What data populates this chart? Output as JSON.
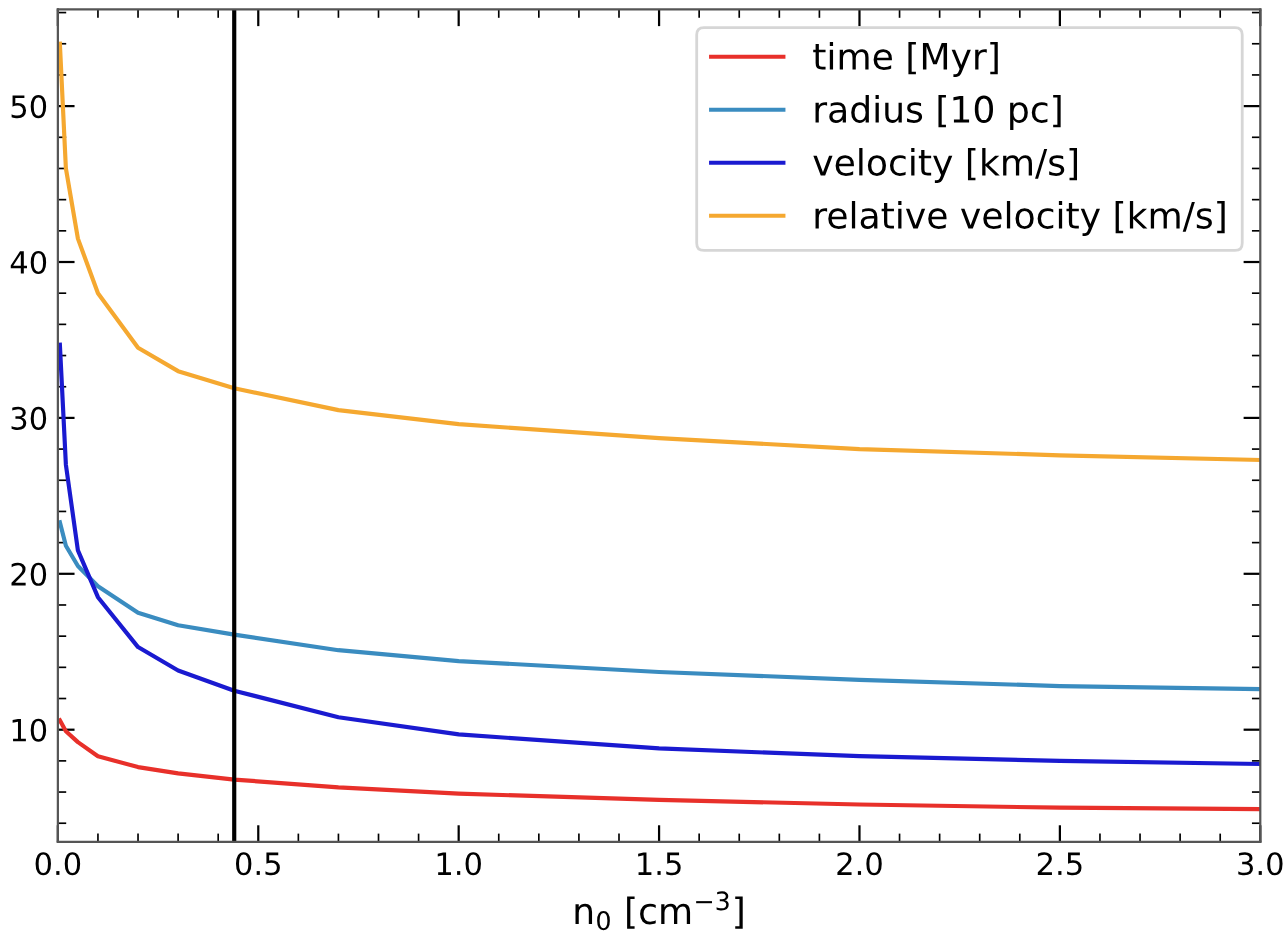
{
  "chart_data": {
    "type": "line",
    "xlabel": "n$_{0}$ [cm$^{−3}$]",
    "xlim": [
      0,
      3.0
    ],
    "ylim": [
      2.8,
      56.2
    ],
    "xticks": [
      {
        "value": 0,
        "label": "0.0"
      },
      0.5,
      {
        "value": 1,
        "label": "1.0"
      },
      1.5,
      {
        "value": 2,
        "label": "2.0"
      },
      2.5,
      {
        "value": 3,
        "label": "3.0"
      }
    ],
    "yticks": [
      10,
      20,
      30,
      40,
      50
    ],
    "x": [
      0.005,
      0.02,
      0.05,
      0.1,
      0.2,
      0.3,
      0.44,
      0.7,
      1.0,
      1.5,
      2.0,
      2.5,
      3.0
    ],
    "series": [
      {
        "name": "time [Myr]",
        "color": "#e8302a",
        "values": [
          10.6,
          9.9,
          9.2,
          8.3,
          7.6,
          7.2,
          6.8,
          6.3,
          5.9,
          5.5,
          5.2,
          5.0,
          4.9
        ]
      },
      {
        "name": "radius [10 pc]",
        "color": "#3a8cc0",
        "values": [
          23.3,
          21.8,
          20.5,
          19.2,
          17.5,
          16.7,
          16.1,
          15.1,
          14.4,
          13.7,
          13.2,
          12.8,
          12.6
        ]
      },
      {
        "name": "velocity [km/s]",
        "color": "#1a1ad0",
        "values": [
          34.7,
          27.0,
          21.5,
          18.5,
          15.3,
          13.8,
          12.5,
          10.8,
          9.7,
          8.8,
          8.3,
          8.0,
          7.8
        ]
      },
      {
        "name": "relative velocity [km/s]",
        "color": "#f5a830",
        "values": [
          54.0,
          46.0,
          41.5,
          38.0,
          34.5,
          33.0,
          31.9,
          30.5,
          29.6,
          28.7,
          28.0,
          27.6,
          27.3
        ]
      }
    ],
    "ref_lines": [
      {
        "axis": "x",
        "value": 0.44,
        "color": "#000000"
      }
    ],
    "legend": "top right",
    "grid": false,
    "marker": "none",
    "line_style": "solid"
  }
}
